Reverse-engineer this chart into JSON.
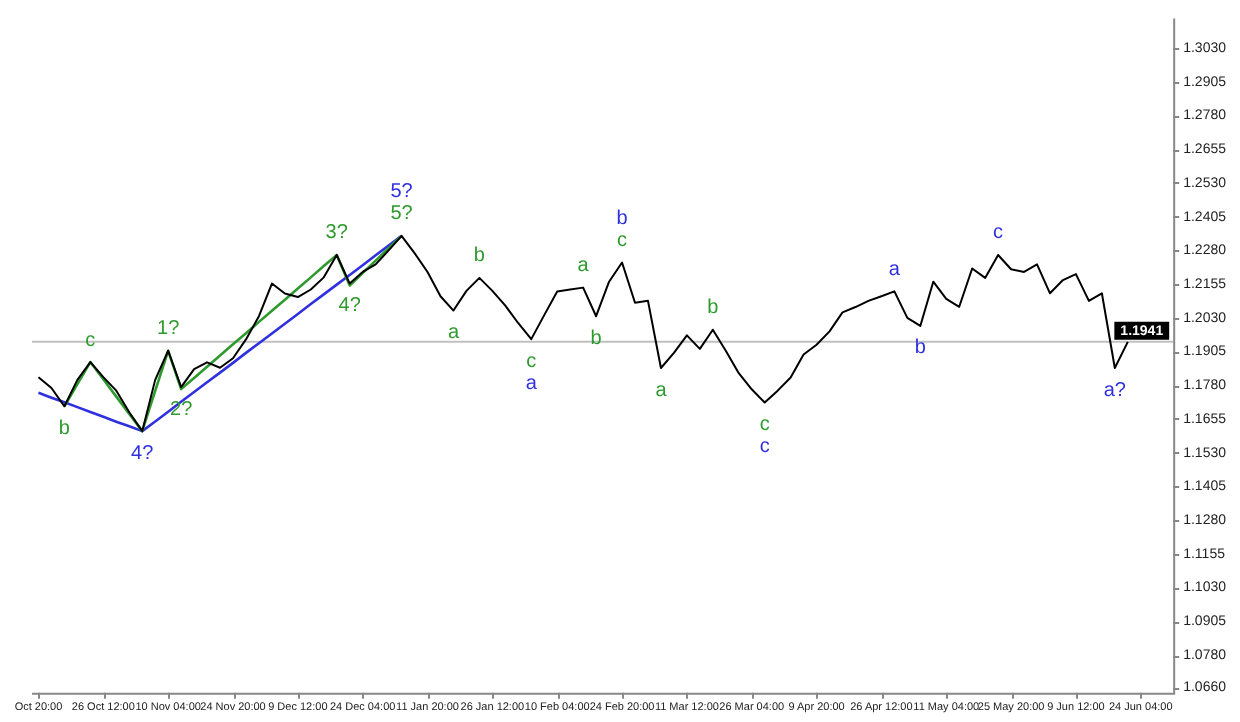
{
  "chart_data": {
    "type": "line",
    "marker": "none",
    "line_style": "solid",
    "grid": false,
    "legend": false,
    "categories": [
      "Oct 20:00",
      null,
      null,
      null,
      null,
      "26 Oct 12:00",
      null,
      null,
      null,
      null,
      "10 Nov 04:00",
      null,
      null,
      null,
      null,
      "24 Nov 20:00",
      null,
      null,
      null,
      null,
      "9 Dec 12:00",
      null,
      null,
      null,
      null,
      "24 Dec 04:00",
      null,
      null,
      null,
      null,
      "11 Jan 20:00",
      null,
      null,
      null,
      null,
      "26 Jan 12:00",
      null,
      null,
      null,
      null,
      "10 Feb 04:00",
      null,
      null,
      null,
      null,
      "24 Feb 20:00",
      null,
      null,
      null,
      null,
      "11 Mar 12:00",
      null,
      null,
      null,
      null,
      "26 Mar 04:00",
      null,
      null,
      null,
      null,
      "9 Apr 20:00",
      null,
      null,
      null,
      null,
      "26 Apr 12:00",
      null,
      null,
      null,
      null,
      "11 May 04:00",
      null,
      null,
      null,
      null,
      "25 May 20:00",
      null,
      null,
      null,
      null,
      "9 Jun 12:00",
      null,
      null,
      null,
      null,
      "24 Jun 04:00",
      null,
      null
    ],
    "ylim": [
      1.064,
      1.314
    ],
    "yticks": [
      {
        "value": 1.303,
        "label": "1.3030"
      },
      {
        "value": 1.2905,
        "label": "1.2905"
      },
      {
        "value": 1.278,
        "label": "1.2780"
      },
      {
        "value": 1.2655,
        "label": "1.2655"
      },
      {
        "value": 1.253,
        "label": "1.2530"
      },
      {
        "value": 1.2405,
        "label": "1.2405"
      },
      {
        "value": 1.228,
        "label": "1.2280"
      },
      {
        "value": 1.2155,
        "label": "1.2155"
      },
      {
        "value": 1.203,
        "label": "1.2030"
      },
      {
        "value": 1.1905,
        "label": "1.1905"
      },
      {
        "value": 1.178,
        "label": "1.1780"
      },
      {
        "value": 1.1655,
        "label": "1.1655"
      },
      {
        "value": 1.153,
        "label": "1.1530"
      },
      {
        "value": 1.1405,
        "label": "1.1405"
      },
      {
        "value": 1.128,
        "label": "1.1280"
      },
      {
        "value": 1.1155,
        "label": "1.1155"
      },
      {
        "value": 1.103,
        "label": "1.1030"
      },
      {
        "value": 1.0905,
        "label": "1.0905"
      },
      {
        "value": 1.078,
        "label": "1.0780"
      },
      {
        "value": 1.066,
        "label": "1.0660"
      }
    ],
    "ref_lines": [
      {
        "axis": "y",
        "value": 1.1941,
        "label": "1.1941",
        "color": "#c0c0c0"
      }
    ],
    "series": [
      {
        "color": "#000000",
        "values": [
          1.181,
          1.177,
          1.1702,
          1.18,
          1.1866,
          1.181,
          1.176,
          1.168,
          1.161,
          1.18,
          1.1908,
          1.1773,
          1.184,
          1.1865,
          1.1845,
          1.188,
          1.195,
          1.2036,
          1.2157,
          1.212,
          1.2107,
          1.2135,
          1.218,
          1.2263,
          1.2157,
          1.22,
          1.2228,
          1.228,
          1.2334,
          1.227,
          1.22,
          1.211,
          1.2057,
          1.213,
          1.2178,
          1.213,
          1.2075,
          1.201,
          1.1951,
          1.204,
          1.2128,
          1.2135,
          1.2142,
          1.2036,
          1.2164,
          1.2235,
          1.2086,
          1.2093,
          1.1844,
          1.19,
          1.1965,
          1.1915,
          1.1986,
          1.1908,
          1.1825,
          1.1765,
          1.1716,
          1.176,
          1.1809,
          1.1894,
          1.193,
          1.198,
          1.205,
          1.207,
          1.2093,
          1.211,
          1.2128,
          1.203,
          1.2,
          1.2164,
          1.21,
          1.2071,
          1.2213,
          1.2178,
          1.2263,
          1.221,
          1.22,
          1.2228,
          1.2121,
          1.217,
          1.2192,
          1.2093,
          1.2121,
          1.1844,
          1.1941,
          null,
          null,
          null
        ]
      },
      {
        "color": "#2e9a2e",
        "values": [
          null,
          null,
          1.1702,
          1.1784,
          1.1866,
          1.1802,
          1.1738,
          1.1674,
          1.161,
          1.1759,
          1.1908,
          1.1766,
          1.1807,
          1.1849,
          1.189,
          1.1932,
          1.1973,
          1.2015,
          1.2056,
          1.2097,
          1.2139,
          1.218,
          1.2222,
          1.2263,
          1.215,
          1.2196,
          1.2242,
          1.2288,
          1.2334,
          null,
          null,
          null,
          null,
          null,
          null,
          null,
          null,
          null,
          null,
          null,
          null,
          null,
          null,
          null,
          null,
          null,
          null,
          null,
          null,
          null,
          null,
          null,
          null,
          null,
          null,
          null,
          null,
          null,
          null,
          null,
          null,
          null,
          null,
          null,
          null,
          null,
          null,
          null,
          null,
          null,
          null,
          null,
          null,
          null,
          null,
          null,
          null,
          null,
          null,
          null,
          null,
          null,
          null,
          null,
          null,
          null,
          null,
          null
        ]
      },
      {
        "color": "#3030e0",
        "values": [
          1.1752,
          1.1734,
          1.1717,
          1.1699,
          1.1681,
          1.1663,
          1.1645,
          1.1628,
          1.161,
          1.1646,
          1.1682,
          1.1719,
          1.1755,
          1.1791,
          1.1827,
          1.1863,
          1.19,
          1.1936,
          1.1972,
          1.2008,
          1.2044,
          1.2081,
          1.2117,
          1.2153,
          1.2189,
          1.2225,
          1.2262,
          1.2298,
          1.2334,
          null,
          null,
          null,
          null,
          null,
          null,
          null,
          null,
          null,
          null,
          null,
          null,
          null,
          null,
          null,
          null,
          null,
          null,
          null,
          null,
          null,
          null,
          null,
          null,
          null,
          null,
          null,
          null,
          null,
          null,
          null,
          null,
          null,
          null,
          null,
          null,
          null,
          null,
          null,
          null,
          null,
          null,
          null,
          null,
          null,
          null,
          null,
          null,
          null,
          null,
          null,
          null,
          null,
          null,
          null,
          null,
          null,
          null,
          null
        ]
      }
    ],
    "annotations": [
      "b",
      "c",
      "1?",
      "2?",
      "3?",
      "4?",
      "5?",
      "4?",
      "5?",
      "a",
      "b",
      "c",
      "a",
      "a",
      "b",
      "c",
      "b",
      "a",
      "b",
      "c",
      "c",
      "a",
      "b",
      "c",
      "a?"
    ]
  }
}
